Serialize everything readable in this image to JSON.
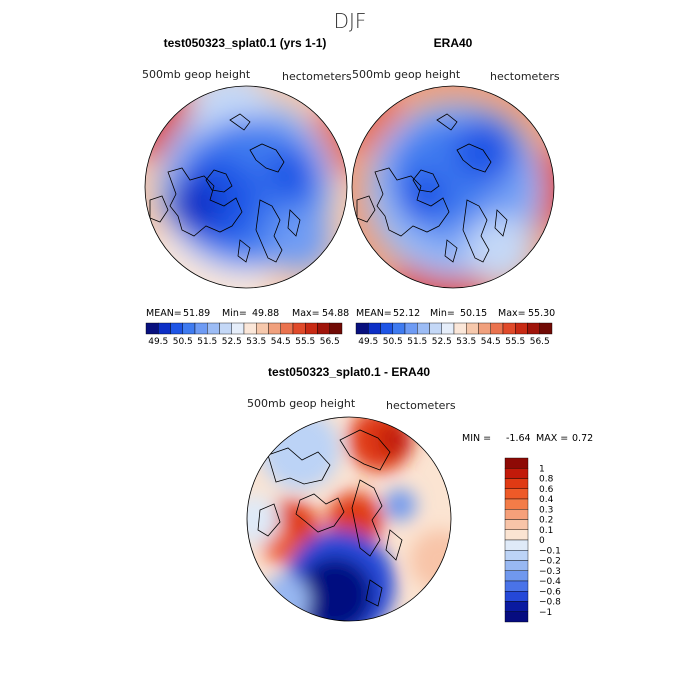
{
  "figure": {
    "season": "DJF"
  },
  "chart_data": [
    {
      "type": "heatmap",
      "title": "test050323_splat0.1 (yrs 1-1)",
      "variable": "500mb geop height",
      "units": "hectometers",
      "projection": "polar-stereographic",
      "stats": {
        "mean_label": "MEAN=",
        "mean": "51.89",
        "min_label": "Min=",
        "min": "49.88",
        "max_label": "Max=",
        "max": "54.88"
      },
      "colorbar": {
        "orientation": "horizontal",
        "levels": [
          "49.5",
          "50.5",
          "51.5",
          "52.5",
          "53.5",
          "54.5",
          "55.5",
          "56.5"
        ],
        "colors": [
          "#08107e",
          "#0d2fc6",
          "#1e55e6",
          "#3f7bf0",
          "#6e9bf4",
          "#9cbcf5",
          "#c4d8f7",
          "#e6eefa",
          "#fbe7d9",
          "#f6c8ac",
          "#f0a07d",
          "#ea734f",
          "#e04a2a",
          "#c82a14",
          "#a0140a",
          "#700a05"
        ]
      }
    },
    {
      "type": "heatmap",
      "title": "ERA40",
      "variable": "500mb geop height",
      "units": "hectometers",
      "projection": "polar-stereographic",
      "stats": {
        "mean_label": "MEAN=",
        "mean": "52.12",
        "min_label": "Min=",
        "min": "50.15",
        "max_label": "Max=",
        "max": "55.30"
      },
      "colorbar": {
        "orientation": "horizontal",
        "levels": [
          "49.5",
          "50.5",
          "51.5",
          "52.5",
          "53.5",
          "54.5",
          "55.5",
          "56.5"
        ],
        "colors": [
          "#08107e",
          "#0d2fc6",
          "#1e55e6",
          "#3f7bf0",
          "#6e9bf4",
          "#9cbcf5",
          "#c4d8f7",
          "#e6eefa",
          "#fbe7d9",
          "#f6c8ac",
          "#f0a07d",
          "#ea734f",
          "#e04a2a",
          "#c82a14",
          "#a0140a",
          "#700a05"
        ]
      }
    },
    {
      "type": "heatmap",
      "title": "test050323_splat0.1 - ERA40",
      "variable": "500mb geop height",
      "units": "hectometers",
      "projection": "polar-stereographic",
      "stats": {
        "min_label": "MIN =",
        "min": "-1.64",
        "max_label": "MAX =",
        "max": "0.72"
      },
      "colorbar": {
        "orientation": "vertical",
        "levels": [
          "1",
          "0.8",
          "0.6",
          "0.4",
          "0.3",
          "0.2",
          "0.1",
          "0",
          "−0.1",
          "−0.2",
          "−0.3",
          "−0.4",
          "−0.6",
          "−0.8",
          "−1"
        ],
        "colors": [
          "#8e0a05",
          "#c21a0a",
          "#e03a14",
          "#ee5a28",
          "#f37c48",
          "#f6a07a",
          "#f8c4a8",
          "#fbe4d2",
          "#dfeaf8",
          "#bcd3f6",
          "#98b8f2",
          "#7098ee",
          "#4a73e8",
          "#2548d8",
          "#0a1aa0",
          "#060c80"
        ]
      }
    }
  ]
}
